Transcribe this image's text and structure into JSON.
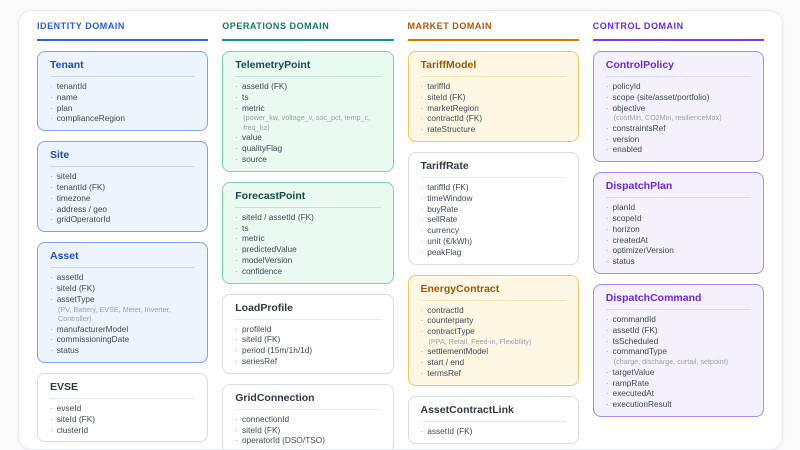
{
  "neutral": {
    "card_bg": "#ffffff",
    "card_border": "#d9dce1",
    "title_color": "#333a45",
    "divider": "#e7e9ed"
  },
  "domains": [
    {
      "id": "identity",
      "label": "IDENTITY DOMAIN",
      "color": "#2a5bd7",
      "rule": "#2f61d8",
      "card_bg": "#eef4fe",
      "card_border": "#7ba3ec",
      "title_color": "#1a4fc4",
      "divider": "#c9d9f5",
      "entities": [
        {
          "name": "Tenant",
          "accent": true,
          "fields": [
            "tenantId",
            "name",
            "plan",
            "complianceRegion"
          ]
        },
        {
          "name": "Site",
          "accent": true,
          "fields": [
            "siteId",
            "tenantId (FK)",
            "timezone",
            "address / geo",
            "gridOperatorId"
          ]
        },
        {
          "name": "Asset",
          "accent": true,
          "fields": [
            "assetId",
            "siteId (FK)",
            "assetType",
            "(PV, Battery, EVSE, Meter, Inverter, Controller)",
            "manufacturerModel",
            "commissioningDate",
            "status"
          ]
        },
        {
          "name": "EVSE",
          "accent": false,
          "fields": [
            "evseId",
            "siteId (FK)",
            "clusterId"
          ]
        }
      ]
    },
    {
      "id": "operations",
      "label": "OPERATIONS DOMAIN",
      "color": "#0e7a64",
      "rule": "#119a80",
      "card_bg": "#eafaf1",
      "card_border": "#77d6ad",
      "title_color": "#134e4a",
      "divider": "#bfe8d2",
      "entities": [
        {
          "name": "TelemetryPoint",
          "accent": true,
          "fields": [
            "assetId (FK)",
            "ts",
            "metric",
            "(power_kw, voltage_v, soc_pct, temp_c, freq_hz)",
            "value",
            "qualityFlag",
            "source"
          ]
        },
        {
          "name": "ForecastPoint",
          "accent": true,
          "fields": [
            "siteId / assetId (FK)",
            "ts",
            "metric",
            "predictedValue",
            "modelVersion",
            "confidence"
          ]
        },
        {
          "name": "LoadProfile",
          "accent": false,
          "fields": [
            "profileId",
            "siteId (FK)",
            "period (15m/1h/1d)",
            "seriesRef"
          ]
        },
        {
          "name": "GridConnection",
          "accent": false,
          "fields": [
            "connectionId",
            "siteId (FK)",
            "operatorId (DSO/TSO)"
          ]
        }
      ]
    },
    {
      "id": "market",
      "label": "MARKET DOMAIN",
      "color": "#b45309",
      "rule": "#d97706",
      "card_bg": "#fdf7e3",
      "card_border": "#f0c75e",
      "title_color": "#9a5b06",
      "divider": "#f2e3b3",
      "entities": [
        {
          "name": "TariffModel",
          "accent": true,
          "fields": [
            "tariffId",
            "siteId (FK)",
            "marketRegion",
            "contractId (FK)",
            "rateStructure"
          ]
        },
        {
          "name": "TariffRate",
          "accent": false,
          "fields": [
            "tariffId (FK)",
            "timeWindow",
            "buyRate",
            "sellRate",
            "currency",
            "unit (€/kWh)",
            "peakFlag"
          ]
        },
        {
          "name": "EnergyContract",
          "accent": true,
          "fields": [
            "contractId",
            "counterparty",
            "contractType",
            "(PPA, Retail, Feed-in, Flexibility)",
            "settlementModel",
            "start / end",
            "termsRef"
          ]
        },
        {
          "name": "AssetContractLink",
          "accent": false,
          "fields": [
            "assetId (FK)"
          ]
        }
      ]
    },
    {
      "id": "control",
      "label": "CONTROL DOMAIN",
      "color": "#6d28d9",
      "rule": "#7c3aed",
      "card_bg": "#f4f1fd",
      "card_border": "#a78bfa",
      "title_color": "#6d28d9",
      "divider": "#ddd6fe",
      "entities": [
        {
          "name": "ControlPolicy",
          "accent": true,
          "fields": [
            "policyId",
            "scope (site/asset/portfolio)",
            "objective",
            "(costMin, CO2Min, resilienceMax)",
            "constraintsRef",
            "version",
            "enabled"
          ]
        },
        {
          "name": "DispatchPlan",
          "accent": true,
          "fields": [
            "planId",
            "scopeId",
            "horizon",
            "createdAt",
            "optimizerVersion",
            "status"
          ]
        },
        {
          "name": "DispatchCommand",
          "accent": true,
          "fields": [
            "commandId",
            "assetId (FK)",
            "tsScheduled",
            "commandType",
            "(charge, discharge, curtail, setpoint)",
            "targetValue",
            "rampRate",
            "executedAt",
            "executionResult"
          ]
        }
      ]
    }
  ]
}
